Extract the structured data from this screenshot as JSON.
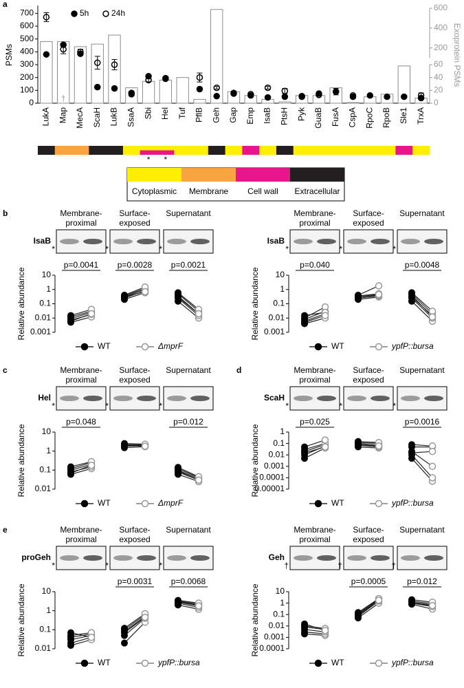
{
  "chart_data": [
    {
      "type": "bar_dot",
      "panel": "a",
      "ylabel": "PSMs",
      "y2label": "Exoprotein PSMs",
      "categories": [
        "LukA",
        "Map",
        "MecA",
        "ScaH",
        "LukB",
        "SsaA",
        "Sbi",
        "Hel",
        "Tuf",
        "PflB",
        "Geh",
        "Gap",
        "Emp",
        "IsaB",
        "PtsH",
        "Pyk",
        "GuaB",
        "FusA",
        "CspA",
        "RpoC",
        "RpoB",
        "Sle1",
        "TrxA"
      ],
      "ylim": [
        0,
        750
      ],
      "yticks": [
        0,
        100,
        200,
        300,
        400,
        500,
        600,
        700
      ],
      "y2_segments": [
        {
          "y2lim": [
            0,
            60
          ],
          "y2ticks": [
            0,
            20,
            40,
            60
          ]
        },
        {
          "y2lim": [
            100,
            600
          ],
          "y2ticks": [
            200,
            400,
            600
          ]
        }
      ],
      "bars": {
        "axis": "y2",
        "color": "#8c8c8c",
        "values": [
          264,
          264,
          212,
          238,
          329,
          24,
          34,
          36,
          40,
          6,
          588,
          18,
          12,
          6,
          2,
          12,
          12,
          24,
          1,
          10,
          14,
          58,
          8
        ]
      },
      "series": [
        {
          "name": "5h",
          "color": "#000000",
          "values": [
            380,
            455,
            385,
            125,
            115,
            80,
            210,
            195,
            null,
            110,
            55,
            80,
            60,
            45,
            50,
            55,
            75,
            90,
            50,
            60,
            50,
            50,
            40
          ]
        },
        {
          "name": "24h",
          "color": "#000000",
          "values": [
            670,
            420,
            400,
            315,
            300,
            70,
            180,
            190,
            null,
            200,
            120,
            75,
            70,
            120,
            95,
            50,
            65,
            90,
            60,
            null,
            null,
            null,
            60
          ],
          "errors": [
            35,
            35,
            20,
            50,
            40,
            15,
            15,
            10,
            null,
            35,
            10,
            10,
            8,
            10,
            20,
            8,
            10,
            25,
            8,
            null,
            null,
            null,
            20
          ]
        }
      ],
      "bar_notes": [
        null,
        "†",
        null,
        null,
        null,
        null,
        null,
        null,
        null,
        null,
        null,
        null,
        null,
        null,
        null,
        null,
        null,
        null,
        null,
        null,
        null,
        null,
        null
      ],
      "localization_legend": [
        {
          "name": "Cytoplasmic",
          "color": "#ffee00"
        },
        {
          "name": "Membrane",
          "color": "#f7a540"
        },
        {
          "name": "Cell wall",
          "color": "#e8158c"
        },
        {
          "name": "Extracellular",
          "color": "#231f20"
        }
      ],
      "localization": [
        [
          3
        ],
        [
          1
        ],
        [
          1
        ],
        [
          3
        ],
        [
          3
        ],
        [
          0
        ],
        [
          0,
          2
        ],
        [
          0,
          2
        ],
        [
          0
        ],
        [
          0
        ],
        [
          3
        ],
        [
          0
        ],
        [
          2
        ],
        [
          0
        ],
        [
          3
        ],
        [
          0
        ],
        [
          0
        ],
        [
          0
        ],
        [
          0
        ],
        [
          0
        ],
        [
          0
        ],
        [
          2
        ],
        [
          0
        ]
      ],
      "localization_notes": [
        null,
        null,
        null,
        null,
        null,
        null,
        "*",
        "*",
        null,
        null,
        null,
        null,
        null,
        null,
        null,
        null,
        null,
        null,
        null,
        null,
        null,
        null,
        null
      ]
    },
    {
      "type": "paired",
      "panel": "b",
      "blot_label": "IsaB",
      "groups": [
        [
          "Membrane-",
          "proximal"
        ],
        [
          "Surface-",
          "exposed"
        ],
        [
          "Supernatant"
        ]
      ],
      "blot_marks": [
        "*",
        "*",
        "*"
      ],
      "ylabel": "Relative abundance",
      "log_scale": true,
      "ylim": [
        0.001,
        10
      ],
      "yticks": [
        10,
        1,
        0.1,
        0.01,
        0.001
      ],
      "pvalues": [
        "p=0.0041",
        "p=0.0028",
        "p=0.0021"
      ],
      "series": [
        {
          "name": "WT",
          "color": "#000000",
          "values": [
            [
              0.005,
              0.007,
              0.009,
              0.012,
              0.015,
              0.006
            ],
            [
              0.2,
              0.25,
              0.3,
              0.35,
              0.4,
              0.3
            ],
            [
              0.15,
              0.25,
              0.35,
              0.5,
              0.6,
              0.3
            ]
          ]
        },
        {
          "name": "ΔmprF",
          "color": "#999999",
          "values": [
            [
              0.012,
              0.018,
              0.025,
              0.03,
              0.04,
              0.02
            ],
            [
              0.6,
              0.8,
              1.0,
              1.2,
              1.5,
              0.7
            ],
            [
              0.01,
              0.015,
              0.02,
              0.03,
              0.04,
              0.02
            ]
          ]
        }
      ]
    },
    {
      "type": "paired",
      "panel": null,
      "blot_label": "IsaB",
      "groups": [
        [
          "Membrane-",
          "proximal"
        ],
        [
          "Surface-",
          "exposed"
        ],
        [
          "Supernatant"
        ]
      ],
      "blot_marks": [
        "*",
        "*",
        "*"
      ],
      "ylabel": "Relative abundance",
      "log_scale": true,
      "ylim": [
        0.001,
        10
      ],
      "yticks": [
        10,
        1,
        0.1,
        0.01,
        0.001
      ],
      "pvalues": [
        "p=0.040",
        null,
        "p=0.0048"
      ],
      "series": [
        {
          "name": "WT",
          "color": "#000000",
          "values": [
            [
              0.004,
              0.006,
              0.008,
              0.01,
              0.015,
              0.005
            ],
            [
              0.2,
              0.25,
              0.3,
              0.35,
              0.4,
              0.3
            ],
            [
              0.15,
              0.25,
              0.3,
              0.5,
              0.6,
              0.4
            ]
          ]
        },
        {
          "name": "ypfP::bursa",
          "color": "#999999",
          "values": [
            [
              0.01,
              0.02,
              0.03,
              0.06,
              0.025,
              0.015
            ],
            [
              0.3,
              0.35,
              0.4,
              0.5,
              1.8,
              0.45
            ],
            [
              0.006,
              0.01,
              0.015,
              0.02,
              0.03,
              0.012
            ]
          ]
        }
      ]
    },
    {
      "type": "paired",
      "panel": "c",
      "blot_label": "Hel",
      "groups": [
        [
          "Membrane-",
          "proximal"
        ],
        [
          "Surface-",
          "exposed"
        ],
        [
          "Supernatant"
        ]
      ],
      "blot_marks": [
        "*",
        "*",
        "*"
      ],
      "ylabel": "Relative abundance",
      "log_scale": true,
      "ylim": [
        0.01,
        10
      ],
      "yticks": [
        10,
        1,
        0.1,
        0.01
      ],
      "pvalues": [
        "p=0.048",
        null,
        "p=0.012"
      ],
      "series": [
        {
          "name": "WT",
          "color": "#000000",
          "values": [
            [
              0.06,
              0.08,
              0.1,
              0.12,
              0.15,
              0.07
            ],
            [
              1.5,
              1.8,
              2,
              2.2,
              2.5,
              2
            ],
            [
              0.06,
              0.08,
              0.1,
              0.12,
              0.14,
              0.09
            ]
          ]
        },
        {
          "name": "ΔmprF",
          "color": "#999999",
          "values": [
            [
              0.12,
              0.15,
              0.2,
              0.25,
              0.28,
              0.18
            ],
            [
              1.7,
              1.9,
              2,
              2.1,
              2.3,
              1.8
            ],
            [
              0.025,
              0.03,
              0.035,
              0.04,
              0.045,
              0.03
            ]
          ]
        }
      ]
    },
    {
      "type": "paired",
      "panel": "d",
      "blot_label": "ScaH",
      "groups": [
        [
          "Membrane-",
          "proximal"
        ],
        [
          "Surface-",
          "exposed"
        ],
        [
          "Supernatant"
        ]
      ],
      "blot_marks": [
        "*",
        "*",
        "*"
      ],
      "ylabel": "Relative abundance",
      "log_scale": true,
      "ylim": [
        1e-05,
        1
      ],
      "yticks": [
        1,
        0.1,
        0.01,
        0.001,
        0.0001,
        1e-05
      ],
      "pvalues": [
        "p=0.025",
        null,
        "p=0.0016"
      ],
      "series": [
        {
          "name": "WT",
          "color": "#000000",
          "values": [
            [
              0.005,
              0.01,
              0.02,
              0.03,
              0.05,
              0.015
            ],
            [
              0.05,
              0.07,
              0.1,
              0.12,
              0.15,
              0.08
            ],
            [
              0.005,
              0.01,
              0.02,
              0.05,
              0.08,
              0.015
            ]
          ]
        },
        {
          "name": "ypfP::bursa",
          "color": "#999999",
          "values": [
            [
              0.04,
              0.06,
              0.08,
              0.1,
              0.2,
              0.05
            ],
            [
              0.04,
              0.05,
              0.07,
              0.1,
              0.12,
              0.06
            ],
            [
              5e-05,
              0.0001,
              0.001,
              0.05,
              0.06,
              0.02
            ]
          ]
        }
      ]
    },
    {
      "type": "paired",
      "panel": "e",
      "blot_label": "proGeh",
      "groups": [
        [
          "Membrane-",
          "proximal"
        ],
        [
          "Surface-",
          "exposed"
        ],
        [
          "Supernatant"
        ]
      ],
      "blot_marks": [
        "*",
        "*",
        "*"
      ],
      "ylabel": "Relative abundance",
      "log_scale": true,
      "ylim": [
        0.01,
        10
      ],
      "yticks": [
        10,
        1,
        0.1,
        0.01
      ],
      "pvalues": [
        null,
        "p=0.0031",
        "p=0.0068"
      ],
      "series": [
        {
          "name": "WT",
          "color": "#000000",
          "values": [
            [
              0.015,
              0.02,
              0.03,
              0.04,
              0.05,
              0.07
            ],
            [
              0.02,
              0.05,
              0.08,
              0.1,
              0.12,
              0.07
            ],
            [
              2,
              2.5,
              3,
              3.2,
              3.5,
              2.8
            ]
          ]
        },
        {
          "name": "ypfP::bursa",
          "color": "#999999",
          "values": [
            [
              0.03,
              0.04,
              0.05,
              0.06,
              0.07,
              0.04
            ],
            [
              0.25,
              0.4,
              0.5,
              0.6,
              0.7,
              0.45
            ],
            [
              1.2,
              1.5,
              2,
              2.2,
              2.5,
              1.8
            ]
          ]
        }
      ]
    },
    {
      "type": "paired",
      "panel": null,
      "blot_label": "Geh",
      "groups": [
        [
          "Membrane-",
          "proximal"
        ],
        [
          "Surface-",
          "exposed"
        ],
        [
          "Supernatant"
        ]
      ],
      "blot_marks": [
        "†",
        "†",
        "†"
      ],
      "ylabel": "Relative abundance",
      "log_scale": true,
      "ylim": [
        0.0001,
        10
      ],
      "yticks": [
        10,
        1,
        0.1,
        0.01,
        0.001,
        0.0001
      ],
      "pvalues": [
        null,
        "p=0.0005",
        "p=0.012"
      ],
      "series": [
        {
          "name": "WT",
          "color": "#000000",
          "values": [
            [
              0.002,
              0.003,
              0.005,
              0.008,
              0.01,
              0.015
            ],
            [
              0.05,
              0.07,
              0.1,
              0.12,
              0.15,
              0.08
            ],
            [
              0.8,
              1,
              1.2,
              1.5,
              2,
              1.1
            ]
          ]
        },
        {
          "name": "ypfP::bursa",
          "color": "#999999",
          "values": [
            [
              0.0015,
              0.002,
              0.003,
              0.005,
              0.006,
              0.004
            ],
            [
              1,
              1.5,
              2,
              2.2,
              2.5,
              1.8
            ],
            [
              0.3,
              0.5,
              0.7,
              0.9,
              1.2,
              0.6
            ]
          ]
        }
      ]
    }
  ]
}
